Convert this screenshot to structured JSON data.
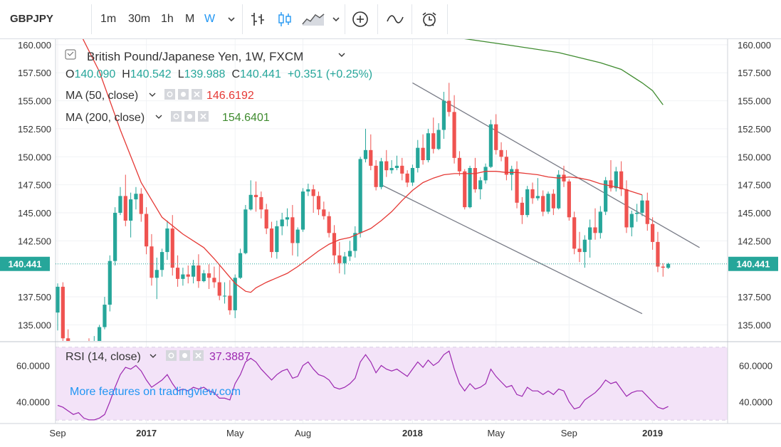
{
  "toolbar": {
    "symbol": "GBPJPY",
    "intervals": [
      "1m",
      "30m",
      "1h",
      "M",
      "W"
    ],
    "active_interval": "W",
    "icons": [
      "chevron-down-icon",
      "bar-chart-icon",
      "candles-icon",
      "area-chart-icon",
      "add-indicator-icon",
      "compare-icon",
      "alert-icon"
    ]
  },
  "legend": {
    "title": "British Pound/Japanese Yen, 1W, FXCM",
    "o_label": "O",
    "o_value": "140.090",
    "h_label": "H",
    "h_value": "140.542",
    "l_label": "L",
    "l_value": "139.988",
    "c_label": "C",
    "c_value": "140.441",
    "change": "+0.351 (+0.25%)",
    "ma50_label": "MA (50, close)",
    "ma50_value": "146.6192",
    "ma200_label": "MA (200, close)",
    "ma200_value": "154.6401",
    "rsi_label": "RSI (14, close)",
    "rsi_value": "37.3887",
    "promo": "More features on tradingview.com"
  },
  "colors": {
    "up": "#26a69a",
    "down": "#ef5350",
    "ma50": "#e53935",
    "ma200": "#3f8b2f",
    "rsi": "#9c27b0",
    "rsi_band": "#f3e3f8",
    "channel": "#787b86",
    "price_tag": "#26a69a"
  },
  "chart_data": [
    {
      "type": "candlestick",
      "title": "British Pound/Japanese Yen, 1W, FXCM",
      "x_tick_labels": [
        "Sep",
        "2017",
        "May",
        "Aug",
        "2018",
        "May",
        "Sep",
        "2019"
      ],
      "x_tick_index": [
        0,
        17,
        34,
        47,
        68,
        84,
        98,
        114
      ],
      "y_ticks": [
        "160.000",
        "157.500",
        "155.000",
        "152.500",
        "150.000",
        "147.500",
        "145.000",
        "142.500",
        "137.500",
        "135.000"
      ],
      "ylim": [
        133.5,
        160.5
      ],
      "last_price": "140.441",
      "candles": [
        [
          136.1,
          138.7,
          134.5,
          138.4
        ],
        [
          138.4,
          138.8,
          132.7,
          133.8
        ],
        [
          133.8,
          134.6,
          131.5,
          132.2
        ],
        [
          132.2,
          133.0,
          130.2,
          131.0
        ],
        [
          131.0,
          132.5,
          129.8,
          131.8
        ],
        [
          131.8,
          133.5,
          130.5,
          132.5
        ],
        [
          132.5,
          133.8,
          131.5,
          132.0
        ],
        [
          132.0,
          134.0,
          131.8,
          133.5
        ],
        [
          133.5,
          135.0,
          133.2,
          134.8
        ],
        [
          134.8,
          137.5,
          134.6,
          136.8
        ],
        [
          136.8,
          141.2,
          136.2,
          140.7
        ],
        [
          140.7,
          145.5,
          140.3,
          145.0
        ],
        [
          145.0,
          147.3,
          144.8,
          146.5
        ],
        [
          146.5,
          148.4,
          143.8,
          144.3
        ],
        [
          144.3,
          146.8,
          142.8,
          146.2
        ],
        [
          146.2,
          147.3,
          145.3,
          146.7
        ],
        [
          146.7,
          147.2,
          144.2,
          144.9
        ],
        [
          144.9,
          145.5,
          141.3,
          142.0
        ],
        [
          142.0,
          143.1,
          138.5,
          139.2
        ],
        [
          139.2,
          141.0,
          137.3,
          139.9
        ],
        [
          139.9,
          141.8,
          139.3,
          141.5
        ],
        [
          141.5,
          144.3,
          140.8,
          143.6
        ],
        [
          143.6,
          144.8,
          139.4,
          140.1
        ],
        [
          140.1,
          141.2,
          138.4,
          139.1
        ],
        [
          139.1,
          140.1,
          138.5,
          139.5
        ],
        [
          139.5,
          140.3,
          138.7,
          139.3
        ],
        [
          139.3,
          140.8,
          138.7,
          140.3
        ],
        [
          140.3,
          141.3,
          138.3,
          138.9
        ],
        [
          138.9,
          139.9,
          138.8,
          139.6
        ],
        [
          139.6,
          140.4,
          138.2,
          139.2
        ],
        [
          139.2,
          140.2,
          138.3,
          138.8
        ],
        [
          138.8,
          140.3,
          137.2,
          137.6
        ],
        [
          137.6,
          138.8,
          136.9,
          137.6
        ],
        [
          137.6,
          139.0,
          135.9,
          136.3
        ],
        [
          136.3,
          139.5,
          135.6,
          139.2
        ],
        [
          139.2,
          141.8,
          139.1,
          141.4
        ],
        [
          141.4,
          145.7,
          141.3,
          145.3
        ],
        [
          145.3,
          147.9,
          145.2,
          146.6
        ],
        [
          146.6,
          147.8,
          145.1,
          146.4
        ],
        [
          146.4,
          146.9,
          144.5,
          145.3
        ],
        [
          145.3,
          145.8,
          143.1,
          143.6
        ],
        [
          143.6,
          144.2,
          141.0,
          141.5
        ],
        [
          141.5,
          144.3,
          140.9,
          143.8
        ],
        [
          143.8,
          145.0,
          143.0,
          144.4
        ],
        [
          144.4,
          145.4,
          143.8,
          144.6
        ],
        [
          144.6,
          145.7,
          141.2,
          142.3
        ],
        [
          142.3,
          143.7,
          141.1,
          143.5
        ],
        [
          143.5,
          147.2,
          143.3,
          146.9
        ],
        [
          146.9,
          147.6,
          146.5,
          147.1
        ],
        [
          147.1,
          147.5,
          145.0,
          146.5
        ],
        [
          146.5,
          146.9,
          144.8,
          145.3
        ],
        [
          145.3,
          146.0,
          144.4,
          144.7
        ],
        [
          144.7,
          145.1,
          142.8,
          143.2
        ],
        [
          143.2,
          143.9,
          140.4,
          141.2
        ],
        [
          141.2,
          142.4,
          139.6,
          140.5
        ],
        [
          140.5,
          141.5,
          139.5,
          141.1
        ],
        [
          141.1,
          142.5,
          140.7,
          141.6
        ],
        [
          141.6,
          143.8,
          141.0,
          143.2
        ],
        [
          143.2,
          150.0,
          142.8,
          149.8
        ],
        [
          149.8,
          152.5,
          149.5,
          150.6
        ],
        [
          150.6,
          152.0,
          148.8,
          149.2
        ],
        [
          149.2,
          149.7,
          147.0,
          147.3
        ],
        [
          147.3,
          149.9,
          147.1,
          149.6
        ],
        [
          149.6,
          150.6,
          148.2,
          148.8
        ],
        [
          148.8,
          149.7,
          148.5,
          149.0
        ],
        [
          149.0,
          150.1,
          148.8,
          149.2
        ],
        [
          149.2,
          149.9,
          147.9,
          148.5
        ],
        [
          148.5,
          148.8,
          147.3,
          147.7
        ],
        [
          147.7,
          149.3,
          147.4,
          149.0
        ],
        [
          149.0,
          151.5,
          148.6,
          150.8
        ],
        [
          150.8,
          152.0,
          149.3,
          149.7
        ],
        [
          149.7,
          152.5,
          149.5,
          152.1
        ],
        [
          152.1,
          153.5,
          150.3,
          150.7
        ],
        [
          150.7,
          153.0,
          150.6,
          152.4
        ],
        [
          152.4,
          155.8,
          151.6,
          155.0
        ],
        [
          155.0,
          156.6,
          153.6,
          154.0
        ],
        [
          154.0,
          155.5,
          149.4,
          149.9
        ],
        [
          149.9,
          150.5,
          148.3,
          148.7
        ],
        [
          148.7,
          148.9,
          145.3,
          145.5
        ],
        [
          145.5,
          149.2,
          145.4,
          149.0
        ],
        [
          149.0,
          149.9,
          146.8,
          147.1
        ],
        [
          147.1,
          148.2,
          146.2,
          147.9
        ],
        [
          147.9,
          149.4,
          147.6,
          149.1
        ],
        [
          149.1,
          153.3,
          149.0,
          152.9
        ],
        [
          152.9,
          153.8,
          150.2,
          150.6
        ],
        [
          150.6,
          151.3,
          149.6,
          150.0
        ],
        [
          150.0,
          150.6,
          147.9,
          148.4
        ],
        [
          148.4,
          149.2,
          147.0,
          148.9
        ],
        [
          148.9,
          149.6,
          145.4,
          145.9
        ],
        [
          145.9,
          146.4,
          144.0,
          144.8
        ],
        [
          144.8,
          147.4,
          144.6,
          147.1
        ],
        [
          147.1,
          147.7,
          145.8,
          146.3
        ],
        [
          146.3,
          148.1,
          146.1,
          146.5
        ],
        [
          146.5,
          147.0,
          144.7,
          145.1
        ],
        [
          145.1,
          146.9,
          144.9,
          146.7
        ],
        [
          146.7,
          147.1,
          144.8,
          145.4
        ],
        [
          145.4,
          148.8,
          145.3,
          148.4
        ],
        [
          148.4,
          149.2,
          147.3,
          147.8
        ],
        [
          147.8,
          148.0,
          144.3,
          144.6
        ],
        [
          144.6,
          145.1,
          141.3,
          141.8
        ],
        [
          141.8,
          143.3,
          140.6,
          141.5
        ],
        [
          141.5,
          143.0,
          140.1,
          142.6
        ],
        [
          142.6,
          144.4,
          141.0,
          143.7
        ],
        [
          143.7,
          145.4,
          142.6,
          143.2
        ],
        [
          143.2,
          145.6,
          142.7,
          145.1
        ],
        [
          145.1,
          148.2,
          144.8,
          147.9
        ],
        [
          147.9,
          149.7,
          146.9,
          147.2
        ],
        [
          147.2,
          149.1,
          146.9,
          148.7
        ],
        [
          148.7,
          149.6,
          146.5,
          147.1
        ],
        [
          147.1,
          147.9,
          143.2,
          143.7
        ],
        [
          143.7,
          145.2,
          142.9,
          144.9
        ],
        [
          144.9,
          145.8,
          144.2,
          145.0
        ],
        [
          145.0,
          146.6,
          144.7,
          146.1
        ],
        [
          146.1,
          146.8,
          143.4,
          144.0
        ],
        [
          144.0,
          144.6,
          141.7,
          142.4
        ],
        [
          142.4,
          143.3,
          139.7,
          140.2
        ],
        [
          140.2,
          140.5,
          139.3,
          140.1
        ],
        [
          140.09,
          140.542,
          139.988,
          140.441
        ]
      ],
      "ma50_points": [
        [
          0,
          164.0
        ],
        [
          4,
          161.3
        ],
        [
          8,
          157.6
        ],
        [
          12,
          152.4
        ],
        [
          16,
          147.7
        ],
        [
          20,
          144.6
        ],
        [
          24,
          143.1
        ],
        [
          28,
          141.9
        ],
        [
          30,
          140.9
        ],
        [
          32,
          139.8
        ],
        [
          34,
          138.7
        ],
        [
          36,
          138.0
        ],
        [
          37,
          137.9
        ],
        [
          38,
          138.3
        ],
        [
          40,
          138.8
        ],
        [
          42,
          139.2
        ],
        [
          44,
          139.6
        ],
        [
          46,
          140.2
        ],
        [
          48,
          140.9
        ],
        [
          50,
          141.6
        ],
        [
          52,
          142.2
        ],
        [
          54,
          142.6
        ],
        [
          56,
          142.8
        ],
        [
          58,
          143.2
        ],
        [
          60,
          143.6
        ],
        [
          62,
          144.3
        ],
        [
          64,
          145.1
        ],
        [
          66,
          146.1
        ],
        [
          68,
          147.0
        ],
        [
          70,
          147.7
        ],
        [
          72,
          148.1
        ],
        [
          74,
          148.4
        ],
        [
          76,
          148.5
        ],
        [
          78,
          148.5
        ],
        [
          80,
          148.5
        ],
        [
          82,
          148.7
        ],
        [
          84,
          148.7
        ],
        [
          86,
          148.6
        ],
        [
          88,
          148.6
        ],
        [
          90,
          148.5
        ],
        [
          92,
          148.4
        ],
        [
          94,
          148.2
        ],
        [
          96,
          148.1
        ],
        [
          98,
          148.2
        ],
        [
          100,
          148.1
        ],
        [
          102,
          147.9
        ],
        [
          104,
          147.6
        ],
        [
          106,
          147.4
        ],
        [
          108,
          147.2
        ],
        [
          110,
          146.9
        ],
        [
          112,
          146.6
        ]
      ],
      "ma200_points": [
        [
          77,
          160.6
        ],
        [
          86,
          160.0
        ],
        [
          96,
          159.3
        ],
        [
          104,
          158.4
        ],
        [
          108,
          157.8
        ],
        [
          112,
          156.6
        ],
        [
          114,
          155.9
        ],
        [
          116,
          154.64
        ]
      ],
      "channel_upper": [
        [
          68,
          156.6
        ],
        [
          123,
          141.9
        ]
      ],
      "channel_lower": [
        [
          62,
          147.5
        ],
        [
          112,
          136.0
        ]
      ]
    },
    {
      "type": "line",
      "title": "RSI (14, close)",
      "y_ticks": [
        "60.0000",
        "40.0000"
      ],
      "ylim": [
        28,
        72
      ],
      "band": [
        30,
        70
      ],
      "values": [
        38,
        37,
        35,
        33,
        34,
        31,
        30,
        30,
        31,
        33,
        40,
        48,
        55,
        59,
        58,
        60,
        57,
        52,
        48,
        50,
        52,
        55,
        50,
        46,
        47,
        46,
        48,
        47,
        48,
        46,
        45,
        42,
        42,
        41,
        50,
        55,
        62,
        64,
        62,
        58,
        55,
        52,
        55,
        57,
        58,
        53,
        54,
        60,
        62,
        58,
        55,
        54,
        52,
        48,
        47,
        48,
        50,
        53,
        62,
        66,
        62,
        56,
        60,
        58,
        57,
        58,
        56,
        54,
        58,
        62,
        59,
        63,
        60,
        62,
        66,
        68,
        58,
        50,
        46,
        50,
        47,
        48,
        50,
        58,
        54,
        51,
        48,
        49,
        44,
        43,
        48,
        46,
        46,
        44,
        46,
        44,
        47,
        46,
        40,
        36,
        37,
        41,
        43,
        45,
        48,
        52,
        50,
        51,
        47,
        43,
        45,
        46,
        46,
        43,
        40,
        37,
        36,
        37.3887
      ]
    }
  ]
}
